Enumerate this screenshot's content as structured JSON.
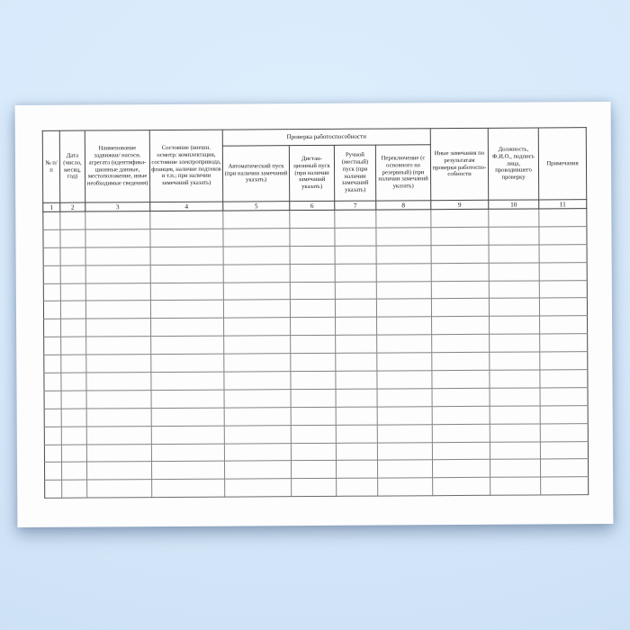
{
  "colors": {
    "background_top": "#ddeefd",
    "background_bottom": "#cbdff4",
    "page": "#fdfdfe",
    "grid_line": "#838383",
    "header_line": "#454545",
    "text": "#1c1c1c"
  },
  "document": {
    "table": {
      "group_header": {
        "label": "Проверка работоспособности",
        "spans_columns": "5-8"
      },
      "columns": [
        {
          "number": "1",
          "label": "№ п/п"
        },
        {
          "number": "2",
          "label": "Дата (число, месяц, год)"
        },
        {
          "number": "3",
          "label": "Наименование задвижки/ насосн. агрегата (идентифика-ционные данные, местоположение, иные необходимые сведения)"
        },
        {
          "number": "4",
          "label": "Состояние (внешн. осмотр: комплектация, состояние электропривода, фланцев, наличие подтеков и т.п.; при наличии замечаний указать)"
        },
        {
          "number": "5",
          "label": "Автоматический пуск (при наличии замечаний указать)"
        },
        {
          "number": "6",
          "label": "Дистан-ционный пуск (при наличии замечаний указать)"
        },
        {
          "number": "7",
          "label": "Ручной (местный) пуск (при наличии замечаний указать)"
        },
        {
          "number": "8",
          "label": "Переключение (с основного на резервный) (при наличии замечаний указать)"
        },
        {
          "number": "9",
          "label": "Иные замечания по результатам проверки работоспо-собности"
        },
        {
          "number": "10",
          "label": "Должность, Ф.И.О., подпись лица, проводившего проверку"
        },
        {
          "number": "11",
          "label": "Примечания"
        }
      ],
      "empty_rows": 16
    }
  }
}
